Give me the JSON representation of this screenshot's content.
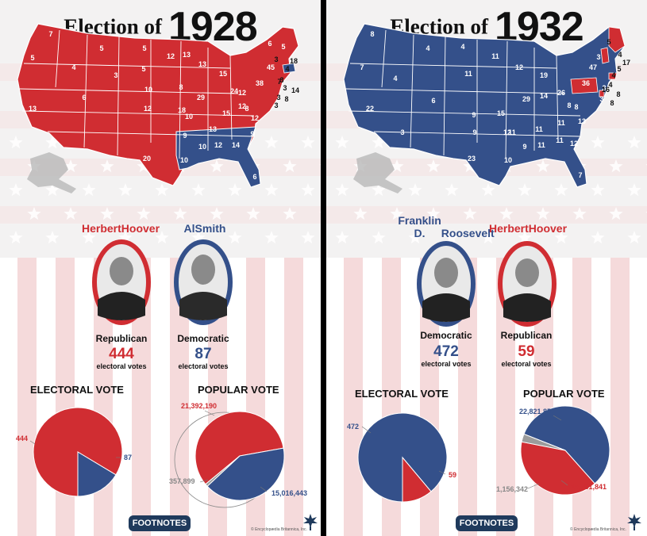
{
  "colors": {
    "republican": "#d02d32",
    "democratic": "#34508a",
    "other": "#9b9b9b",
    "stripe": "#f5dadb",
    "navy_btn": "#1f3a5c"
  },
  "panels": [
    {
      "title_prefix": "Election of",
      "year": "1928",
      "map_labels": [
        "7",
        "5",
        "4",
        "5",
        "12",
        "13",
        "6",
        "5",
        "3",
        "5",
        "18",
        "4",
        "45",
        "3",
        "3",
        "5",
        "15",
        "13",
        "24",
        "38",
        "7",
        "14",
        "8",
        "3",
        "6",
        "10",
        "13",
        "29",
        "15",
        "8",
        "12",
        "12",
        "13",
        "18",
        "8",
        "12",
        "10",
        "12",
        "3",
        "9",
        "10",
        "12",
        "14",
        "9",
        "3",
        "20",
        "10",
        "6"
      ],
      "candidates": [
        {
          "name_lines": [
            "Herbert",
            "Hoover"
          ],
          "party": "Republican",
          "votes": "444",
          "votes_label": "electoral votes",
          "color": "republican"
        },
        {
          "name_lines": [
            "Al",
            "Smith"
          ],
          "party": "Democratic",
          "votes": "87",
          "votes_label": "electoral votes",
          "color": "democratic"
        }
      ],
      "electoral_heading": "ELECTORAL VOTE",
      "popular_heading": "POPULAR VOTE",
      "footnotes_label": "FOOTNOTES",
      "credit": "© Encyclopædia Britannica, Inc.",
      "chart_data": [
        {
          "type": "pie",
          "title": "ELECTORAL VOTE",
          "labels": [
            "444",
            "87"
          ],
          "values": [
            444,
            87
          ],
          "colors": [
            "#d02d32",
            "#34508a"
          ]
        },
        {
          "type": "pie",
          "title": "POPULAR VOTE",
          "labels": [
            "21,392,190",
            "15,016,443",
            "357,899"
          ],
          "values": [
            21392190,
            15016443,
            357899
          ],
          "colors": [
            "#d02d32",
            "#34508a",
            "#9b9b9b"
          ]
        }
      ]
    },
    {
      "title_prefix": "Election of",
      "year": "1932",
      "map_labels": [
        "8",
        "4",
        "4",
        "11",
        "12",
        "19",
        "47",
        "5",
        "3",
        "4",
        "17",
        "5",
        "4",
        "3",
        "4",
        "7",
        "11",
        "36",
        "8",
        "22",
        "4",
        "6",
        "9",
        "15",
        "29",
        "14",
        "26",
        "8",
        "16",
        "3",
        "8",
        "11",
        "11",
        "11",
        "13",
        "11",
        "11",
        "8",
        "12",
        "3",
        "9",
        "9",
        "12",
        "23",
        "10",
        "7"
      ],
      "candidates": [
        {
          "name_lines": [
            "Franklin D.",
            "Roosevelt"
          ],
          "party": "Democratic",
          "votes": "472",
          "votes_label": "electoral votes",
          "color": "democratic"
        },
        {
          "name_lines": [
            "Herbert",
            "Hoover"
          ],
          "party": "Republican",
          "votes": "59",
          "votes_label": "electoral votes",
          "color": "republican"
        }
      ],
      "electoral_heading": "ELECTORAL VOTE",
      "popular_heading": "POPULAR VOTE",
      "footnotes_label": "FOOTNOTES",
      "credit": "© Encyclopædia Britannica, Inc.",
      "chart_data": [
        {
          "type": "pie",
          "title": "ELECTORAL VOTE",
          "labels": [
            "472",
            "59"
          ],
          "values": [
            472,
            59
          ],
          "colors": [
            "#34508a",
            "#d02d32"
          ]
        },
        {
          "type": "pie",
          "title": "POPULAR VOTE",
          "labels": [
            "22,821,857",
            "15,761,841",
            "1,156,342"
          ],
          "values": [
            22821857,
            15761841,
            1156342
          ],
          "colors": [
            "#34508a",
            "#d02d32",
            "#9b9b9b"
          ]
        }
      ]
    }
  ]
}
